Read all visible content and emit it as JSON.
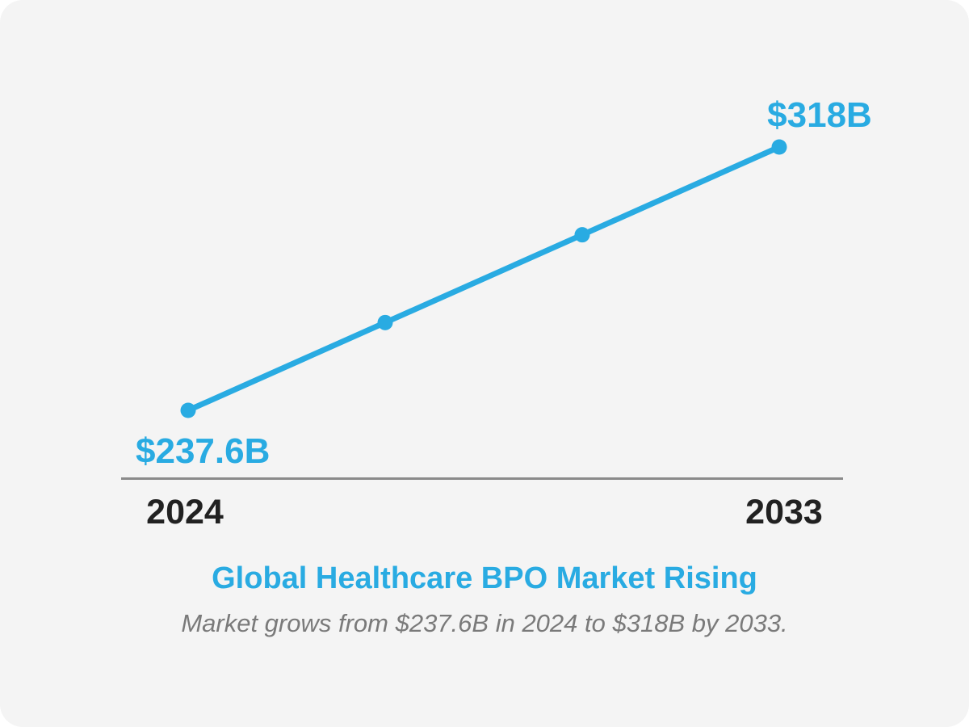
{
  "title": "Global Healthcare BPO Market Rising",
  "subtitle": "Market grows from $237.6B in 2024 to $318B by 2033.",
  "chart": {
    "start_value_label": "$237.6B",
    "end_value_label": "$318B",
    "x_axis": {
      "start_label": "2024",
      "end_label": "2033"
    }
  },
  "colors": {
    "accent": "#29ABE2",
    "axis": "#8A8A8A",
    "text_dark": "#212121",
    "subtitle_gray": "#7A7A7A",
    "card_bg": "#F4F4F4",
    "page_bg": "#FFFFFF"
  },
  "chart_data": {
    "type": "line",
    "x": [
      2024,
      2027,
      2030,
      2033
    ],
    "values": [
      237.6,
      264.4,
      291.2,
      318
    ],
    "series": [
      {
        "name": "Global Healthcare BPO Market ($B)",
        "values": [
          237.6,
          264.4,
          291.2,
          318
        ]
      }
    ],
    "title": "Global Healthcare BPO Market Rising",
    "subtitle": "Market grows from $237.6B in 2024 to $318B by 2033.",
    "xlabel": "",
    "ylabel": "",
    "ylim": [
      237.6,
      318
    ],
    "x_tick_labels": [
      "2024",
      "2033"
    ],
    "point_labels": [
      "$237.6B",
      "",
      "",
      "$318B"
    ],
    "grid": false,
    "legend": false
  }
}
